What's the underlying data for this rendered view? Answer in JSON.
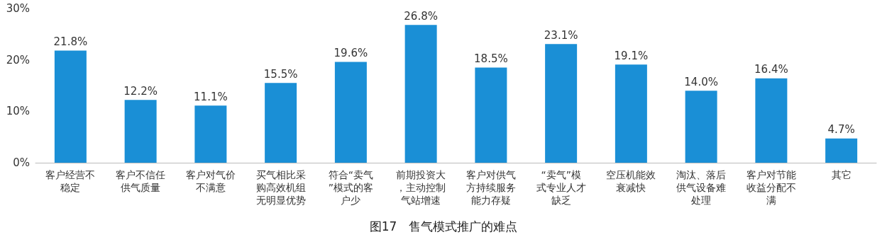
{
  "chart_data": {
    "type": "bar",
    "title": "图17　售气模式推广的难点",
    "categories": [
      "客户经营不稳定",
      "客户不信任供气质量",
      "客户对气价不满意",
      "买气相比采购高效机组无明显优势",
      "符合“卖气”模式的客户少",
      "前期投资大，主动控制气站增速",
      "客户对供气方持续服务能力存疑",
      "“卖气”模式专业人才缺乏",
      "空压机能效衰减快",
      "淘汰、落后供气设备难处理",
      "客户对节能收益分配不满",
      "其它"
    ],
    "values": [
      21.8,
      12.2,
      11.1,
      15.5,
      19.6,
      26.8,
      18.5,
      23.1,
      19.1,
      14.0,
      16.4,
      4.7
    ],
    "value_labels": [
      "21.8%",
      "12.2%",
      "11.1%",
      "15.5%",
      "19.6%",
      "26.8%",
      "18.5%",
      "23.1%",
      "19.1%",
      "14.0%",
      "16.4%",
      "4.7%"
    ],
    "color": "#1a8fd6",
    "ylim": [
      0,
      30
    ],
    "yticks": [
      {
        "value": 0,
        "label": "0%"
      },
      {
        "value": 10,
        "label": "10%"
      },
      {
        "value": 20,
        "label": "20%"
      },
      {
        "value": 30,
        "label": "30%"
      }
    ],
    "grid": false
  }
}
